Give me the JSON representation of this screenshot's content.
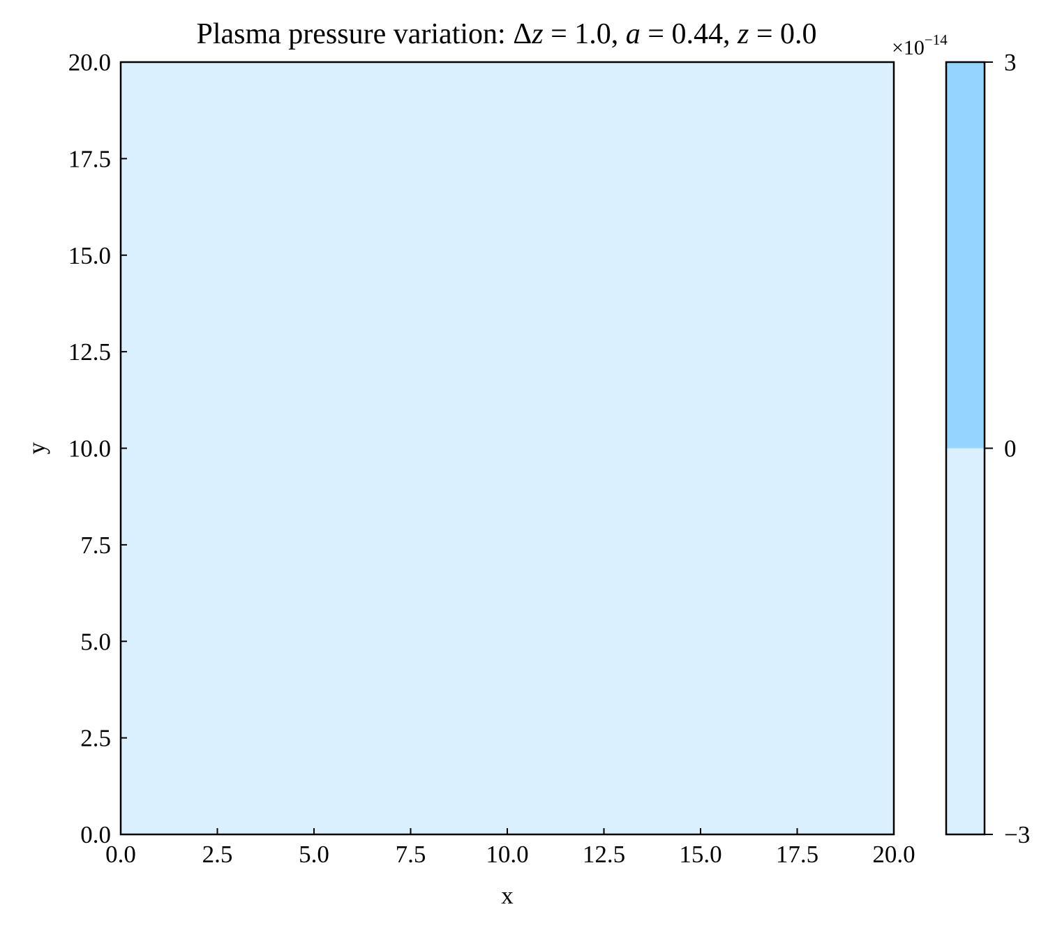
{
  "chart_data": {
    "type": "heatmap",
    "title": "Plasma pressure variation: Δz = 1.0, a = 0.44, z = 0.0",
    "title_parts": [
      {
        "text": "Plasma pressure variation: ",
        "italic": false
      },
      {
        "text": "Δ",
        "italic": false
      },
      {
        "text": "z",
        "italic": true
      },
      {
        "text": " = 1.0, ",
        "italic": false
      },
      {
        "text": "a",
        "italic": true
      },
      {
        "text": " = 0.44, ",
        "italic": false
      },
      {
        "text": "z",
        "italic": true
      },
      {
        "text": " = 0.0",
        "italic": false
      }
    ],
    "xlabel": "x",
    "ylabel": "y",
    "xlim": [
      0.0,
      20.0
    ],
    "ylim": [
      0.0,
      20.0
    ],
    "xticks": [
      "0.0",
      "2.5",
      "5.0",
      "7.5",
      "10.0",
      "12.5",
      "15.0",
      "17.5",
      "20.0"
    ],
    "yticks": [
      "0.0",
      "2.5",
      "5.0",
      "7.5",
      "10.0",
      "12.5",
      "15.0",
      "17.5",
      "20.0"
    ],
    "grid": false,
    "field": {
      "description_value_level": "below zero everywhere",
      "fill_color": "#dbf0fe"
    },
    "colorbar": {
      "scale_base": "×10",
      "scale_exponent": "−14",
      "tick_labels": [
        "−3",
        "0",
        "3"
      ],
      "tick_values": [
        -3,
        0,
        3
      ],
      "range": [
        -3,
        3
      ],
      "bands": [
        {
          "from": -3,
          "to": 0,
          "color": "#dbf0fe"
        },
        {
          "from": 0,
          "to": 3,
          "color": "#94d4fd"
        }
      ]
    },
    "colors": {
      "axis": "#000000",
      "background": "#ffffff"
    }
  }
}
